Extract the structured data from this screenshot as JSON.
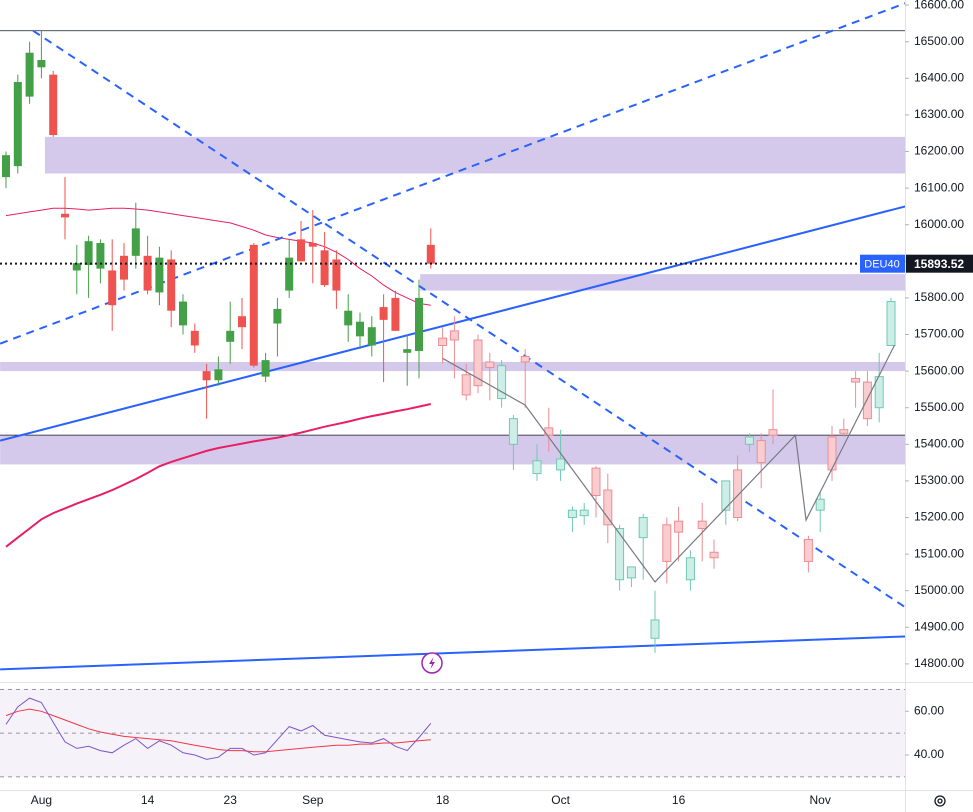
{
  "chart_data": {
    "type": "candlestick",
    "symbol": "DEU40",
    "last_price": 15893.52,
    "categories": [
      null,
      null,
      null,
      "Aug",
      null,
      null,
      null,
      null,
      null,
      null,
      null,
      null,
      "14",
      null,
      null,
      null,
      null,
      null,
      null,
      "23",
      null,
      null,
      null,
      null,
      null,
      null,
      "Sep",
      null,
      null,
      null,
      null,
      null,
      null,
      null,
      null,
      null,
      null,
      "18",
      null,
      null,
      null,
      null,
      null,
      null,
      null,
      null,
      null,
      "Oct",
      null,
      null,
      null,
      null,
      null,
      null,
      null,
      null,
      null,
      "16",
      null,
      null,
      null,
      null,
      null,
      null,
      null,
      null,
      null,
      null,
      null,
      "Nov",
      null,
      null,
      null,
      null,
      null,
      null
    ],
    "candles": {
      "open": [
        16130,
        16160,
        16350,
        16430,
        16410,
        16030,
        15875,
        15890,
        15880,
        15875,
        15915,
        15915,
        15915,
        15815,
        15905,
        15725,
        15710,
        15600,
        15575,
        15680,
        15750,
        15945,
        15585,
        15730,
        15820,
        15960,
        15950,
        15930,
        15905,
        15725,
        15695,
        15670,
        15775,
        15800,
        15650,
        15655,
        15945
      ],
      "high": [
        16200,
        16410,
        16500,
        16530,
        16420,
        16130,
        15945,
        15970,
        15960,
        15960,
        15950,
        16060,
        15970,
        15940,
        15930,
        15810,
        15730,
        15620,
        15640,
        15790,
        15800,
        15950,
        15650,
        15800,
        15960,
        16010,
        16040,
        15980,
        15930,
        15810,
        15760,
        15750,
        15810,
        15820,
        15700,
        15850,
        15990
      ],
      "low": [
        16100,
        16140,
        16330,
        16400,
        16240,
        15960,
        15810,
        15800,
        15840,
        15710,
        15820,
        15880,
        15810,
        15780,
        15720,
        15700,
        15650,
        15470,
        15560,
        15620,
        15660,
        15610,
        15570,
        15640,
        15800,
        15900,
        15840,
        15830,
        15770,
        15680,
        15660,
        15640,
        15570,
        15710,
        15560,
        15580,
        15880
      ],
      "close": [
        16190,
        16390,
        16470,
        16450,
        16245,
        16020,
        15895,
        15955,
        15950,
        15780,
        15850,
        15990,
        15820,
        15910,
        15765,
        15790,
        15670,
        15575,
        15605,
        15710,
        15720,
        15615,
        15630,
        15770,
        15910,
        15900,
        15940,
        15835,
        15820,
        15765,
        15735,
        15720,
        15740,
        15710,
        15660,
        15800,
        15893.52
      ]
    },
    "projection": {
      "open": [
        15690,
        15710,
        15590,
        15685,
        15625,
        15525,
        15400,
        15640,
        15320,
        15445,
        15330,
        15200,
        15205,
        15335,
        15275,
        15030,
        15035,
        15145,
        14870,
        15180,
        15190,
        15030,
        15190,
        15105,
        15220,
        15330,
        15400,
        15410,
        15440,
        null,
        null,
        15140,
        15220,
        15420,
        15440,
        15580,
        15570,
        15500,
        15670
      ],
      "high": [
        15720,
        15750,
        15620,
        15700,
        15650,
        15630,
        15480,
        15660,
        15400,
        15500,
        15440,
        15230,
        15240,
        15340,
        15320,
        15180,
        15060,
        15210,
        15000,
        15200,
        15230,
        15110,
        15240,
        15140,
        15300,
        15370,
        15430,
        15430,
        15550,
        null,
        null,
        15150,
        15270,
        15450,
        15470,
        15600,
        15600,
        15650,
        15800
      ],
      "low": [
        15620,
        15580,
        15520,
        15540,
        15520,
        15500,
        15330,
        15500,
        15300,
        15380,
        15300,
        15160,
        15180,
        15200,
        15130,
        15000,
        15010,
        15030,
        14830,
        15020,
        15080,
        15000,
        15080,
        15060,
        15180,
        15190,
        15380,
        15280,
        15400,
        null,
        null,
        15050,
        15160,
        15300,
        15420,
        15500,
        15450,
        15460,
        15670
      ],
      "close": [
        15670,
        15685,
        15535,
        15560,
        15610,
        15615,
        15470,
        15625,
        15355,
        15425,
        15360,
        15220,
        15220,
        15260,
        15180,
        15170,
        15065,
        15200,
        14920,
        15080,
        15160,
        15090,
        15170,
        15090,
        15300,
        15200,
        15420,
        15350,
        15425,
        null,
        null,
        15080,
        15250,
        15330,
        15430,
        15570,
        15470,
        15585,
        15790
      ]
    },
    "colors": {
      "up": "#43a047",
      "down": "#ef5350",
      "projection_up": "#cdeee6",
      "projection_up_border": "#6ec9b3",
      "projection_down": "#f9cdd0",
      "projection_down_border": "#ee8c92"
    },
    "moving_averages": [
      {
        "color": "#e91e63",
        "width": 1,
        "values": [
          16025,
          16030,
          16035,
          16040,
          16045,
          16045,
          16043,
          16040,
          16042,
          16045,
          16045,
          16043,
          16040,
          16035,
          16030,
          16025,
          16020,
          16015,
          16010,
          16005,
          15995,
          15985,
          15972,
          15965,
          15960,
          15955,
          15950,
          15940,
          15925,
          15905,
          15880,
          15860,
          15835,
          15815,
          15800,
          15785,
          15780
        ]
      },
      {
        "color": "#e91e63",
        "width": 2,
        "values": [
          15120,
          15145,
          15170,
          15195,
          15212,
          15225,
          15238,
          15250,
          15262,
          15275,
          15290,
          15305,
          15322,
          15340,
          15352,
          15362,
          15372,
          15382,
          15390,
          15396,
          15402,
          15408,
          15413,
          15418,
          15425,
          15432,
          15440,
          15448,
          15455,
          15462,
          15470,
          15477,
          15483,
          15490,
          15496,
          15503,
          15510
        ]
      }
    ],
    "zones": [
      {
        "start": 3.3,
        "top": 16240,
        "bottom": 16140
      },
      {
        "start": 35.1,
        "top": 15865,
        "bottom": 15820
      },
      {
        "start": -0.5,
        "top": 15625,
        "bottom": 15600
      },
      {
        "start": -0.5,
        "top": 15425,
        "bottom": 15345
      }
    ],
    "trend_lines": [
      {
        "x": [
          2.3,
          76.2
        ],
        "y": [
          16530,
          14955
        ],
        "dashed": true,
        "color": "#2962ff"
      },
      {
        "x": [
          -0.5,
          76.2
        ],
        "y": [
          15675,
          16605
        ],
        "dashed": true,
        "color": "#2962ff"
      },
      {
        "x": [
          -0.5,
          76.2
        ],
        "y": [
          15410,
          16050
        ],
        "dashed": false,
        "color": "#2962ff"
      },
      {
        "x": [
          -0.5,
          76.2
        ],
        "y": [
          14785,
          14875
        ],
        "dashed": false,
        "color": "#2962ff"
      }
    ],
    "horizontal_lines": [
      16530,
      15425
    ],
    "pattern_line": {
      "x": [
        37.0,
        44.0,
        55.0,
        66.9,
        67.8,
        75.3
      ],
      "y": [
        15635,
        15507,
        15024,
        15425,
        15193,
        15671
      ],
      "color": "#787b86"
    },
    "ylim": [
      14756,
      16614
    ],
    "yticks": [
      {
        "value": 16600,
        "label": "16600.00"
      },
      {
        "value": 16500,
        "label": "16500.00"
      },
      {
        "value": 16400,
        "label": "16400.00"
      },
      {
        "value": 16300,
        "label": "16300.00"
      },
      {
        "value": 16200,
        "label": "16200.00"
      },
      {
        "value": 16100,
        "label": "16100.00"
      },
      {
        "value": 16000,
        "label": "16000.00"
      },
      {
        "value": 15900,
        "label": "15900.00"
      },
      {
        "value": 15800,
        "label": "15800.00"
      },
      {
        "value": 15700,
        "label": "15700.00"
      },
      {
        "value": 15600,
        "label": "15600.00"
      },
      {
        "value": 15500,
        "label": "15500.00"
      },
      {
        "value": 15400,
        "label": "15400.00"
      },
      {
        "value": 15300,
        "label": "15300.00"
      },
      {
        "value": 15200,
        "label": "15200.00"
      },
      {
        "value": 15100,
        "label": "15100.00"
      },
      {
        "value": 15000,
        "label": "15000.00"
      },
      {
        "value": 14900,
        "label": "14900.00"
      },
      {
        "value": 14800,
        "label": "14800.00"
      }
    ],
    "rsi": {
      "color": "#7e57c2",
      "values": [
        54,
        62,
        66,
        64,
        55,
        46,
        43,
        44,
        42,
        41,
        44.5,
        47.5,
        43,
        46.5,
        44.5,
        41,
        40,
        38,
        39,
        43,
        43,
        40,
        41,
        47,
        53,
        51,
        53.5,
        49,
        48,
        47,
        46,
        45.5,
        47.5,
        44,
        42,
        48,
        54.5
      ],
      "ma_color": "#f23645",
      "ma_values": [
        58,
        60,
        61,
        60,
        58,
        56,
        54,
        52,
        50.5,
        49.5,
        48.5,
        48,
        47.5,
        47,
        46.5,
        45.5,
        44.5,
        43.5,
        42.5,
        42,
        42,
        41.5,
        41.5,
        42,
        42.5,
        43,
        43.5,
        44,
        44.5,
        44.5,
        45,
        45,
        45.5,
        45.5,
        46,
        46.5,
        47
      ],
      "ylim": [
        24,
        72
      ],
      "yticks": [
        {
          "value": 60,
          "label": "60.00"
        },
        {
          "value": 40,
          "label": "40.00"
        }
      ],
      "levels": [
        70,
        50,
        30
      ]
    }
  }
}
